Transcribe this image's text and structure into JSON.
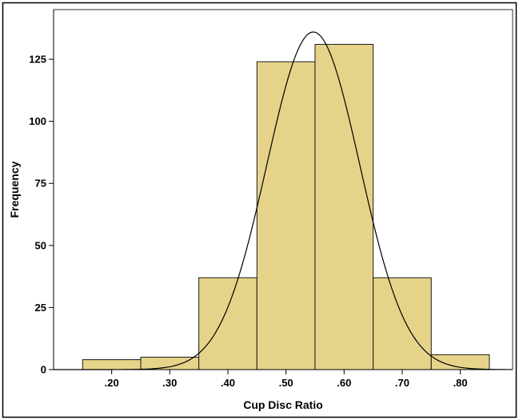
{
  "chart_data": {
    "type": "histogram",
    "title": "",
    "xlabel": "Cup Disc Ratio",
    "ylabel": "Frequency",
    "bins": [
      {
        "start": 0.15,
        "end": 0.25,
        "count": 4
      },
      {
        "start": 0.25,
        "end": 0.35,
        "count": 5
      },
      {
        "start": 0.35,
        "end": 0.45,
        "count": 37
      },
      {
        "start": 0.45,
        "end": 0.55,
        "count": 124
      },
      {
        "start": 0.55,
        "end": 0.65,
        "count": 131
      },
      {
        "start": 0.65,
        "end": 0.75,
        "count": 37
      },
      {
        "start": 0.75,
        "end": 0.85,
        "count": 6
      }
    ],
    "x_ticks": [
      {
        "value": 0.2,
        "label": ".20"
      },
      {
        "value": 0.3,
        "label": ".30"
      },
      {
        "value": 0.4,
        "label": ".40"
      },
      {
        "value": 0.5,
        "label": ".50"
      },
      {
        "value": 0.6,
        "label": ".60"
      },
      {
        "value": 0.7,
        "label": ".70"
      },
      {
        "value": 0.8,
        "label": ".80"
      }
    ],
    "y_ticks": [
      {
        "value": 0,
        "label": "0"
      },
      {
        "value": 25,
        "label": "25"
      },
      {
        "value": 50,
        "label": "50"
      },
      {
        "value": 75,
        "label": "75"
      },
      {
        "value": 100,
        "label": "100"
      },
      {
        "value": 125,
        "label": "125"
      }
    ],
    "xlim": [
      0.1,
      0.89
    ],
    "ylim": [
      0,
      145
    ],
    "normal_curve": {
      "mean": 0.547,
      "peak": 136,
      "sd": 0.08
    },
    "grid": false,
    "legend": "none",
    "bar_color": "#e6d38a",
    "bar_edge_color": "#1a1a1a",
    "curve_color": "#000000"
  }
}
